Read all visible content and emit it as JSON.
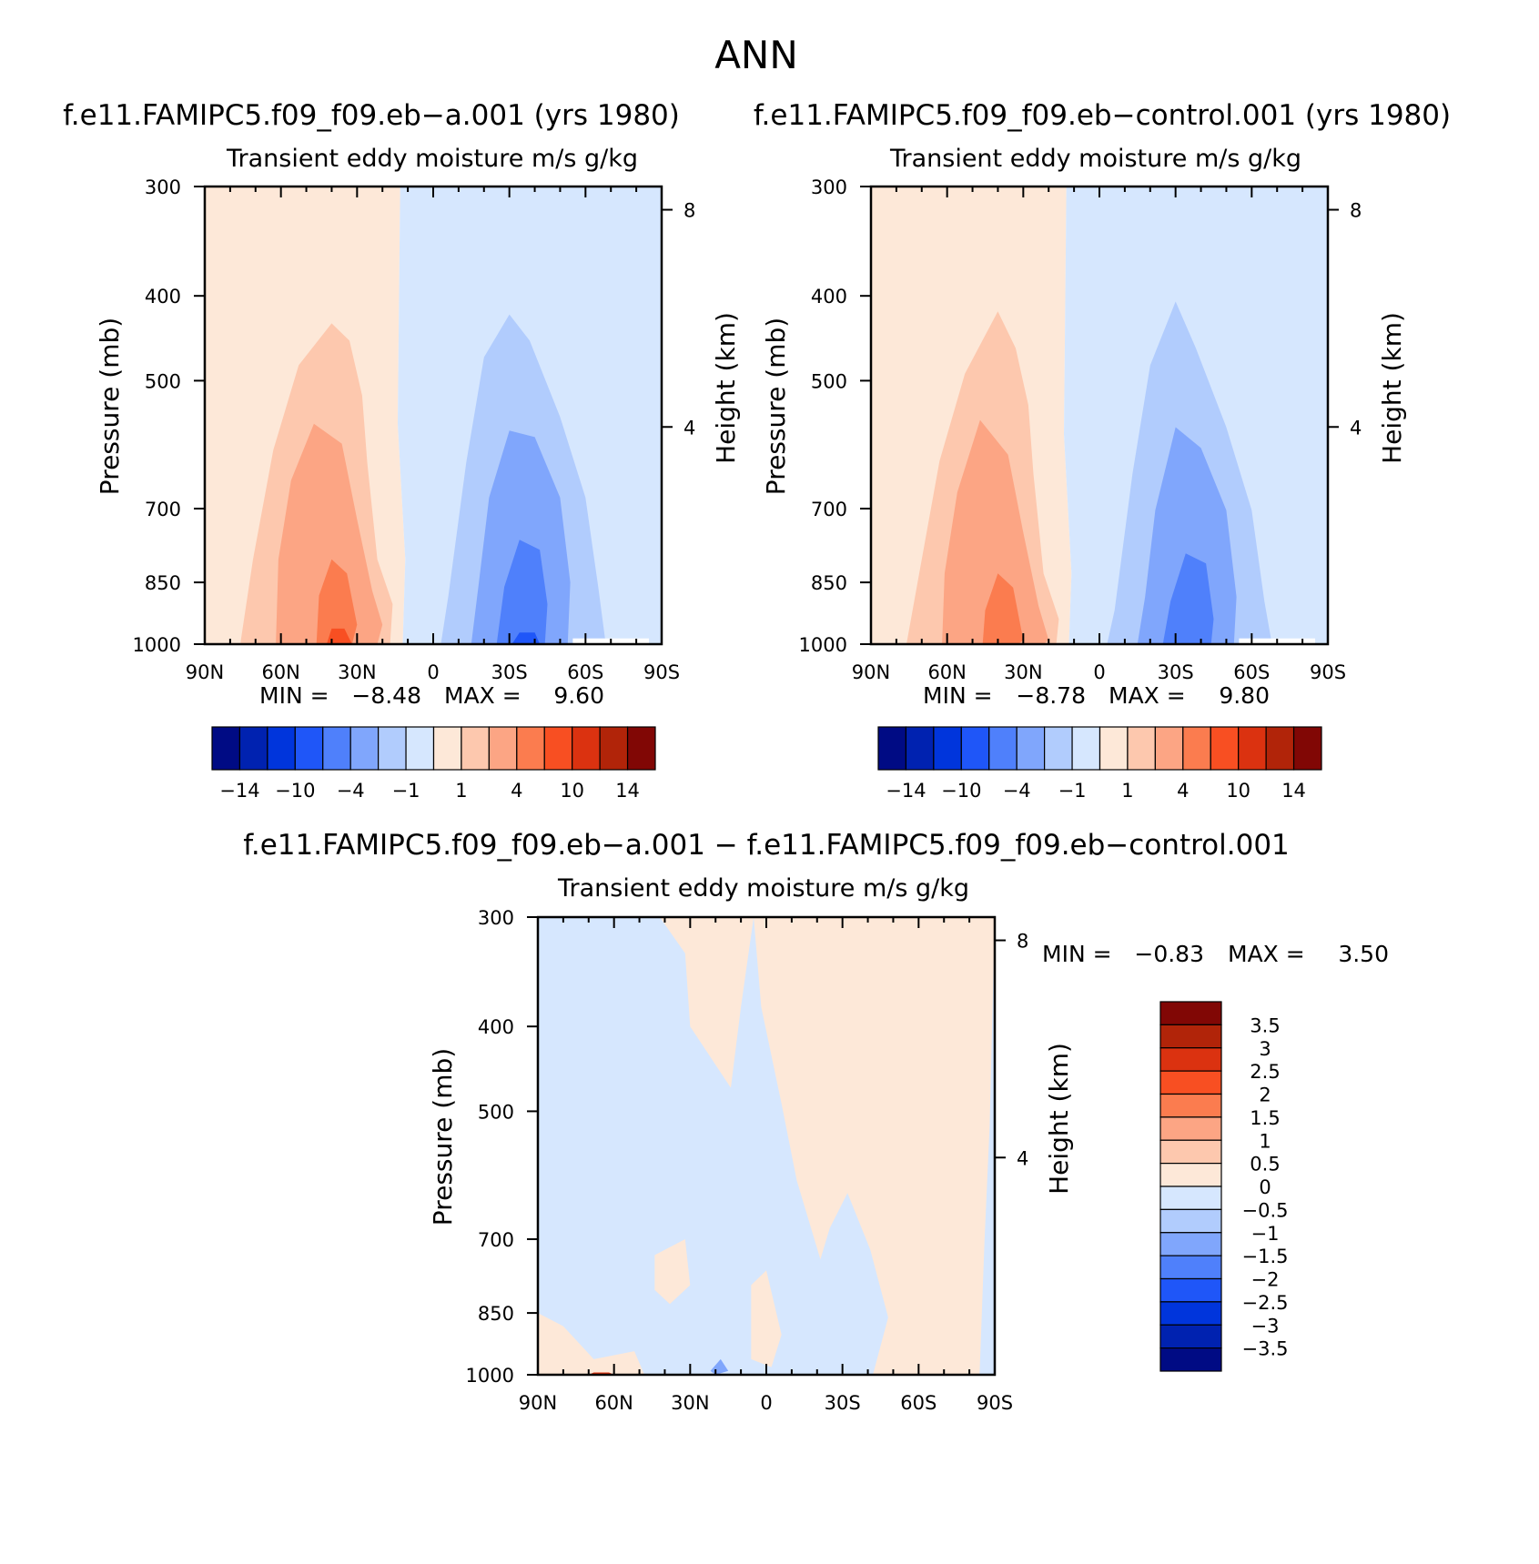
{
  "figure": {
    "title": "ANN"
  },
  "chart_data": [
    {
      "type": "heatmap",
      "id": "case",
      "title": "f.e11.FAMIPC5.f09_f09.eb−a.001 (yrs 1980)",
      "subtitle": "Transient  eddy  moisture m/s  g/kg",
      "ylabel": "Pressure  (mb)",
      "ylabel_right": "Height  (km)",
      "x_ticks": [
        "90N",
        "60N",
        "30N",
        "0",
        "30S",
        "60S",
        "90S"
      ],
      "y_ticks": [
        "300",
        "400",
        "500",
        "700",
        "850",
        "1000"
      ],
      "y_right_ticks": [
        "8",
        "4"
      ],
      "min_label": "MIN =",
      "min_value": "−8.48",
      "max_label": "MAX =",
      "max_value": "9.60",
      "levels": [
        -14,
        -12,
        -10,
        -8,
        -4,
        -2,
        -1,
        0,
        1,
        2,
        4,
        8,
        10,
        12,
        14
      ],
      "colorbar_labels": [
        "−14",
        "−10",
        "−4",
        "−1",
        "1",
        "4",
        "10",
        "14"
      ],
      "colors": [
        "#000b84",
        "#0022b0",
        "#0035dc",
        "#1f56f8",
        "#4f80fb",
        "#80a6fc",
        "#b1ccfd",
        "#d6e7fe",
        "#fde8d8",
        "#fdc8ae",
        "#fca584",
        "#fb7c4f",
        "#f84f22",
        "#db3210",
        "#b12409",
        "#810705"
      ]
    },
    {
      "type": "heatmap",
      "id": "control",
      "title": "f.e11.FAMIPC5.f09_f09.eb−control.001 (yrs 1980)",
      "subtitle": "Transient  eddy  moisture m/s  g/kg",
      "ylabel": "Pressure  (mb)",
      "ylabel_right": "Height  (km)",
      "x_ticks": [
        "90N",
        "60N",
        "30N",
        "0",
        "30S",
        "60S",
        "90S"
      ],
      "y_ticks": [
        "300",
        "400",
        "500",
        "700",
        "850",
        "1000"
      ],
      "y_right_ticks": [
        "8",
        "4"
      ],
      "min_label": "MIN =",
      "min_value": "−8.78",
      "max_label": "MAX =",
      "max_value": "9.80",
      "levels": [
        -14,
        -12,
        -10,
        -8,
        -4,
        -2,
        -1,
        0,
        1,
        2,
        4,
        8,
        10,
        12,
        14
      ],
      "colorbar_labels": [
        "−14",
        "−10",
        "−4",
        "−1",
        "1",
        "4",
        "10",
        "14"
      ],
      "colors": [
        "#000b84",
        "#0022b0",
        "#0035dc",
        "#1f56f8",
        "#4f80fb",
        "#80a6fc",
        "#b1ccfd",
        "#d6e7fe",
        "#fde8d8",
        "#fdc8ae",
        "#fca584",
        "#fb7c4f",
        "#f84f22",
        "#db3210",
        "#b12409",
        "#810705"
      ]
    },
    {
      "type": "heatmap",
      "id": "difference",
      "title": "f.e11.FAMIPC5.f09_f09.eb−a.001 − f.e11.FAMIPC5.f09_f09.eb−control.001",
      "subtitle": "Transient  eddy  moisture m/s  g/kg",
      "ylabel": "Pressure  (mb)",
      "ylabel_right": "Height  (km)",
      "x_ticks": [
        "90N",
        "60N",
        "30N",
        "0",
        "30S",
        "60S",
        "90S"
      ],
      "y_ticks": [
        "300",
        "400",
        "500",
        "700",
        "850",
        "1000"
      ],
      "y_right_ticks": [
        "8",
        "4"
      ],
      "min_label": "MIN =",
      "min_value": "−0.83",
      "max_label": "MAX =",
      "max_value": "3.50",
      "colorbar_labels": [
        "3.5",
        "3",
        "2.5",
        "2",
        "1.5",
        "1",
        "0.5",
        "0",
        "−0.5",
        "−1",
        "−1.5",
        "−2",
        "−2.5",
        "−3",
        "−3.5"
      ],
      "colors_top_to_bottom": [
        "#810705",
        "#b12409",
        "#db3210",
        "#f84f22",
        "#fb7c4f",
        "#fca584",
        "#fdc8ae",
        "#fde8d8",
        "#d6e7fe",
        "#b1ccfd",
        "#80a6fc",
        "#4f80fb",
        "#1f56f8",
        "#0035dc",
        "#0022b0",
        "#000b84"
      ]
    }
  ]
}
